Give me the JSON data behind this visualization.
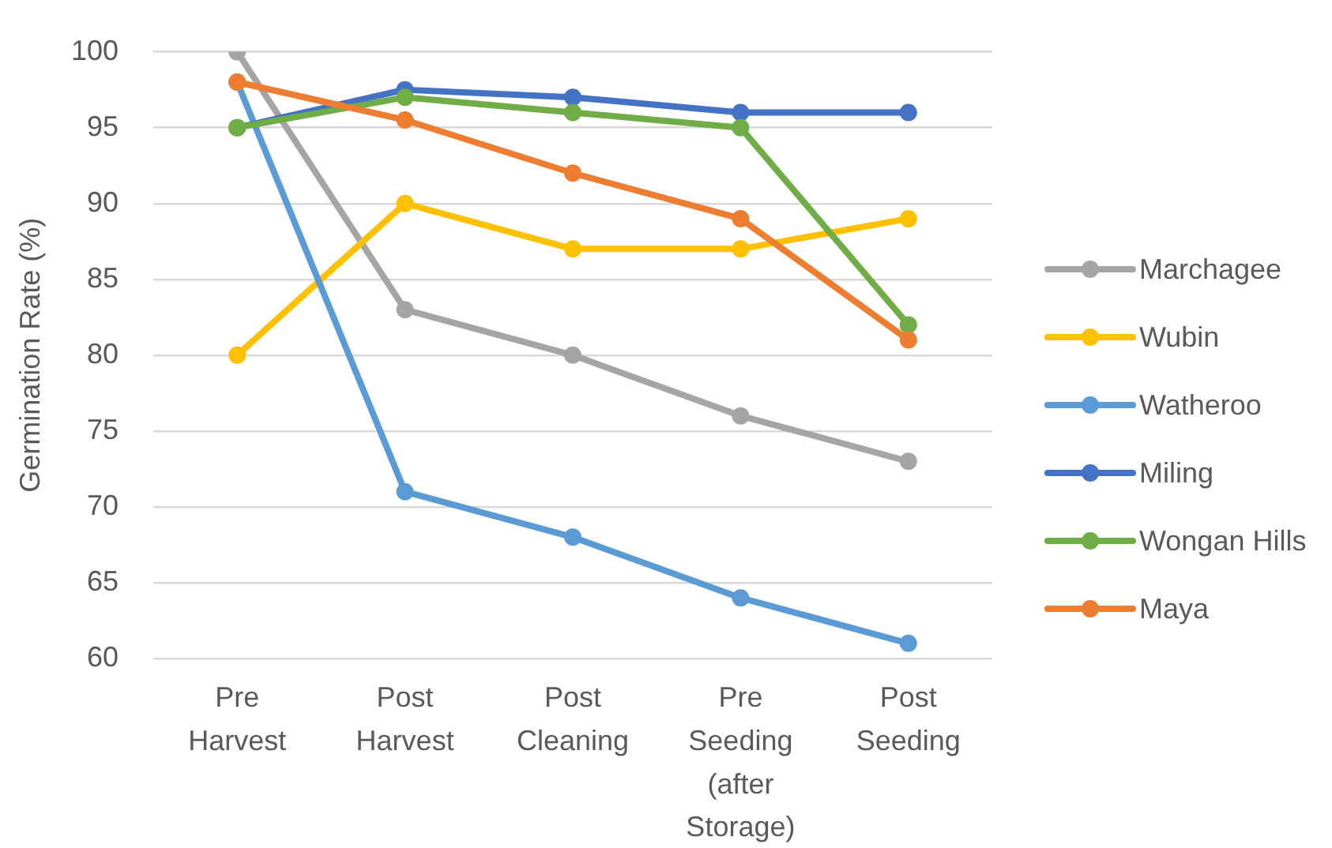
{
  "chart_data": {
    "type": "line",
    "ylabel": "Germination Rate (%)",
    "categories": [
      "Pre Harvest",
      "Post Harvest",
      "Post Cleaning",
      "Pre Seeding (after Storage)",
      "Post Seeding"
    ],
    "series": [
      {
        "name": "Marchagee",
        "color": "#a5a5a5",
        "values": [
          100,
          83,
          80,
          76,
          73
        ]
      },
      {
        "name": "Wubin",
        "color": "#ffc000",
        "values": [
          80,
          90,
          87,
          87,
          89
        ]
      },
      {
        "name": "Watheroo",
        "color": "#5b9bd5",
        "values": [
          98,
          71,
          68,
          64,
          61
        ]
      },
      {
        "name": "Miling",
        "color": "#4472c4",
        "values": [
          95,
          97.5,
          97,
          96,
          96
        ]
      },
      {
        "name": "Wongan Hills",
        "color": "#70ad47",
        "values": [
          95,
          97,
          96,
          95,
          82
        ]
      },
      {
        "name": "Maya",
        "color": "#ed7d31",
        "values": [
          98,
          95.5,
          92,
          89,
          81
        ]
      }
    ],
    "ylim": [
      60,
      100
    ],
    "yticks": [
      60,
      65,
      70,
      75,
      80,
      85,
      90,
      95,
      100
    ],
    "grid": "y",
    "legend": "right",
    "marker": "circle",
    "line_style": "solid"
  }
}
